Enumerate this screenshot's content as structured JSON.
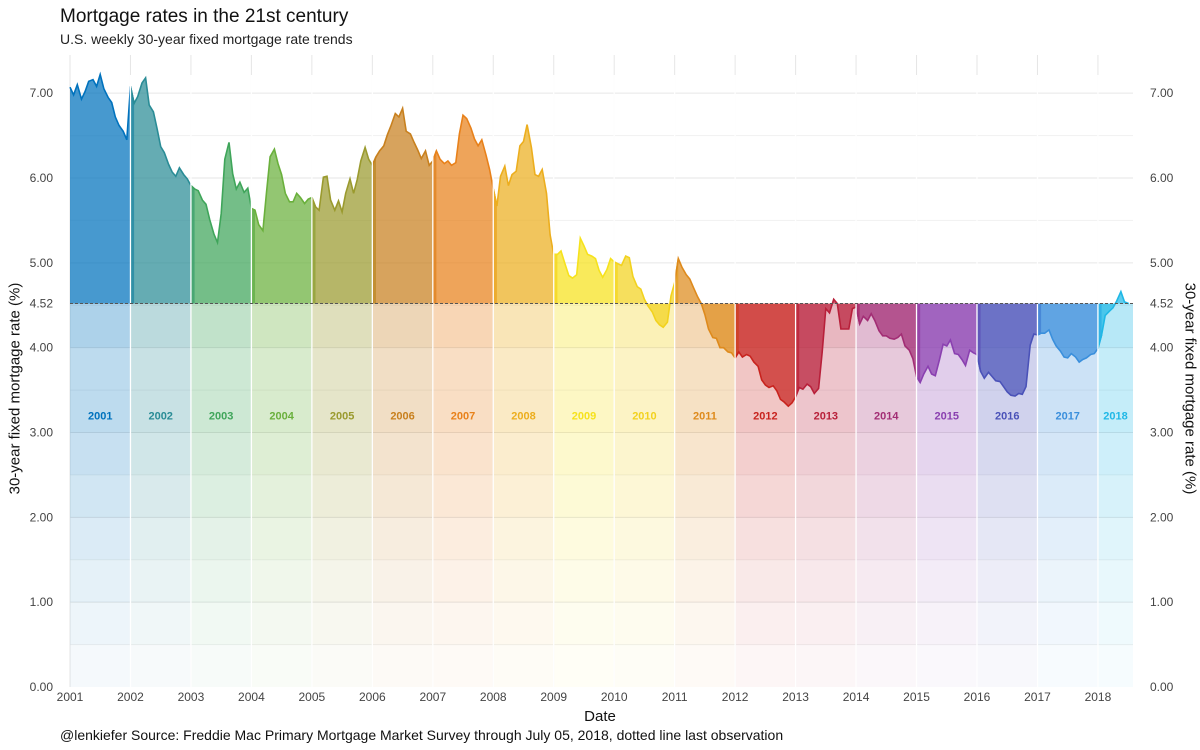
{
  "title": "Mortgage rates in the 21st century",
  "subtitle": "U.S. weekly 30-year fixed mortgage rate trends",
  "caption": "@lenkiefer Source: Freddie Mac Primary Mortgage Market Survey through July 05, 2018, dotted line last observation",
  "chart_data": {
    "type": "area",
    "xlabel": "Date",
    "ylabel": "30-year fixed mortgage rate (%)",
    "ylabel_right": "30-year fixed mortgage rate (%)",
    "xlim": [
      2001.0,
      2018.58
    ],
    "ylim": [
      0,
      7.45
    ],
    "yticks": [
      "0.00",
      "1.00",
      "2.00",
      "3.00",
      "4.00",
      "4.52",
      "5.00",
      "6.00",
      "7.00"
    ],
    "xticks": [
      "2001",
      "2002",
      "2003",
      "2004",
      "2005",
      "2006",
      "2007",
      "2008",
      "2009",
      "2010",
      "2011",
      "2012",
      "2013",
      "2014",
      "2015",
      "2016",
      "2017",
      "2018"
    ],
    "last_observation": 4.52,
    "grid": true,
    "year_label_y": 3.2,
    "years": [
      {
        "label": "2001",
        "color": "#0072bd"
      },
      {
        "label": "2002",
        "color": "#2a8c96"
      },
      {
        "label": "2003",
        "color": "#3fa55a"
      },
      {
        "label": "2004",
        "color": "#6ab03c"
      },
      {
        "label": "2005",
        "color": "#9a9a2e"
      },
      {
        "label": "2006",
        "color": "#c8801e"
      },
      {
        "label": "2007",
        "color": "#e8811a"
      },
      {
        "label": "2008",
        "color": "#ecae1e"
      },
      {
        "label": "2009",
        "color": "#f6e21c"
      },
      {
        "label": "2010",
        "color": "#f2d21e"
      },
      {
        "label": "2011",
        "color": "#de8a1c"
      },
      {
        "label": "2012",
        "color": "#c8231e"
      },
      {
        "label": "2013",
        "color": "#b8203a"
      },
      {
        "label": "2014",
        "color": "#a22d74"
      },
      {
        "label": "2015",
        "color": "#8a40b0"
      },
      {
        "label": "2016",
        "color": "#4a52b8"
      },
      {
        "label": "2017",
        "color": "#3a8fdc"
      },
      {
        "label": "2018",
        "color": "#20b8e6"
      }
    ],
    "x": [
      2001.0,
      2001.06,
      2001.12,
      2001.19,
      2001.25,
      2001.31,
      2001.38,
      2001.44,
      2001.5,
      2001.56,
      2001.63,
      2001.69,
      2001.75,
      2001.81,
      2001.88,
      2001.94,
      2002.0,
      2002.06,
      2002.12,
      2002.19,
      2002.25,
      2002.31,
      2002.38,
      2002.44,
      2002.5,
      2002.56,
      2002.63,
      2002.69,
      2002.75,
      2002.81,
      2002.88,
      2002.94,
      2003.0,
      2003.06,
      2003.12,
      2003.19,
      2003.25,
      2003.31,
      2003.38,
      2003.44,
      2003.5,
      2003.56,
      2003.63,
      2003.69,
      2003.75,
      2003.81,
      2003.88,
      2003.94,
      2004.0,
      2004.06,
      2004.12,
      2004.19,
      2004.25,
      2004.31,
      2004.38,
      2004.44,
      2004.5,
      2004.56,
      2004.63,
      2004.69,
      2004.75,
      2004.81,
      2004.88,
      2004.94,
      2005.0,
      2005.06,
      2005.12,
      2005.19,
      2005.25,
      2005.31,
      2005.38,
      2005.44,
      2005.5,
      2005.56,
      2005.63,
      2005.69,
      2005.75,
      2005.81,
      2005.88,
      2005.94,
      2006.0,
      2006.06,
      2006.12,
      2006.19,
      2006.25,
      2006.31,
      2006.38,
      2006.44,
      2006.5,
      2006.56,
      2006.63,
      2006.69,
      2006.75,
      2006.81,
      2006.88,
      2006.94,
      2007.0,
      2007.06,
      2007.12,
      2007.19,
      2007.25,
      2007.31,
      2007.38,
      2007.44,
      2007.5,
      2007.56,
      2007.63,
      2007.69,
      2007.75,
      2007.81,
      2007.88,
      2007.94,
      2008.0,
      2008.06,
      2008.12,
      2008.19,
      2008.25,
      2008.31,
      2008.38,
      2008.44,
      2008.5,
      2008.56,
      2008.63,
      2008.69,
      2008.75,
      2008.81,
      2008.88,
      2008.94,
      2009.0,
      2009.06,
      2009.12,
      2009.19,
      2009.25,
      2009.31,
      2009.38,
      2009.44,
      2009.5,
      2009.56,
      2009.63,
      2009.69,
      2009.75,
      2009.81,
      2009.88,
      2009.94,
      2010.0,
      2010.06,
      2010.12,
      2010.19,
      2010.25,
      2010.31,
      2010.38,
      2010.44,
      2010.5,
      2010.56,
      2010.63,
      2010.69,
      2010.75,
      2010.81,
      2010.88,
      2010.94,
      2011.0,
      2011.06,
      2011.12,
      2011.19,
      2011.25,
      2011.31,
      2011.38,
      2011.44,
      2011.5,
      2011.56,
      2011.63,
      2011.69,
      2011.75,
      2011.81,
      2011.88,
      2011.94,
      2012.0,
      2012.06,
      2012.12,
      2012.19,
      2012.25,
      2012.31,
      2012.38,
      2012.44,
      2012.5,
      2012.56,
      2012.63,
      2012.69,
      2012.75,
      2012.81,
      2012.88,
      2012.94,
      2013.0,
      2013.06,
      2013.12,
      2013.19,
      2013.25,
      2013.31,
      2013.38,
      2013.44,
      2013.5,
      2013.56,
      2013.63,
      2013.69,
      2013.75,
      2013.81,
      2013.88,
      2013.94,
      2014.0,
      2014.06,
      2014.12,
      2014.19,
      2014.25,
      2014.31,
      2014.38,
      2014.44,
      2014.5,
      2014.56,
      2014.63,
      2014.69,
      2014.75,
      2014.81,
      2014.88,
      2014.94,
      2015.0,
      2015.06,
      2015.12,
      2015.19,
      2015.25,
      2015.31,
      2015.38,
      2015.44,
      2015.5,
      2015.56,
      2015.63,
      2015.69,
      2015.75,
      2015.81,
      2015.88,
      2015.94,
      2016.0,
      2016.06,
      2016.12,
      2016.19,
      2016.25,
      2016.31,
      2016.38,
      2016.44,
      2016.5,
      2016.56,
      2016.63,
      2016.69,
      2016.75,
      2016.81,
      2016.88,
      2016.94,
      2017.0,
      2017.06,
      2017.12,
      2017.19,
      2017.25,
      2017.31,
      2017.38,
      2017.44,
      2017.5,
      2017.56,
      2017.63,
      2017.69,
      2017.75,
      2017.81,
      2017.88,
      2017.94,
      2018.0,
      2018.06,
      2018.12,
      2018.19,
      2018.25,
      2018.31,
      2018.38,
      2018.44,
      2018.51
    ],
    "y": [
      7.07,
      6.98,
      7.1,
      6.93,
      7.02,
      7.14,
      7.16,
      7.08,
      7.22,
      7.05,
      6.95,
      6.89,
      6.72,
      6.62,
      6.55,
      6.45,
      7.08,
      6.88,
      6.96,
      7.12,
      7.18,
      6.86,
      6.78,
      6.58,
      6.37,
      6.3,
      6.16,
      6.07,
      6.02,
      6.12,
      6.04,
      5.99,
      5.91,
      5.87,
      5.85,
      5.74,
      5.69,
      5.51,
      5.34,
      5.24,
      5.58,
      6.22,
      6.42,
      6.05,
      5.87,
      5.95,
      5.83,
      5.88,
      5.64,
      5.62,
      5.45,
      5.38,
      5.83,
      6.25,
      6.34,
      6.17,
      6.04,
      5.82,
      5.72,
      5.72,
      5.82,
      5.77,
      5.7,
      5.75,
      5.77,
      5.66,
      5.62,
      6.01,
      6.02,
      5.74,
      5.62,
      5.73,
      5.6,
      5.82,
      5.99,
      5.82,
      5.98,
      6.2,
      6.36,
      6.22,
      6.15,
      6.25,
      6.32,
      6.38,
      6.51,
      6.62,
      6.76,
      6.72,
      6.82,
      6.55,
      6.52,
      6.42,
      6.33,
      6.23,
      6.32,
      6.15,
      6.2,
      6.32,
      6.22,
      6.17,
      6.2,
      6.15,
      6.18,
      6.52,
      6.74,
      6.7,
      6.59,
      6.46,
      6.38,
      6.45,
      6.27,
      6.1,
      5.87,
      5.67,
      6.02,
      6.14,
      5.91,
      6.04,
      6.08,
      6.38,
      6.43,
      6.63,
      6.36,
      6.04,
      6.02,
      6.1,
      5.82,
      5.33,
      5.1,
      5.1,
      5.14,
      4.98,
      4.85,
      4.82,
      4.86,
      5.29,
      5.2,
      5.1,
      5.08,
      5.05,
      4.91,
      4.83,
      4.92,
      5.05,
      5.01,
      4.99,
      4.97,
      5.08,
      5.06,
      4.84,
      4.72,
      4.69,
      4.57,
      4.49,
      4.42,
      4.32,
      4.27,
      4.24,
      4.3,
      4.61,
      4.77,
      5.05,
      4.95,
      4.86,
      4.81,
      4.71,
      4.6,
      4.52,
      4.39,
      4.22,
      4.12,
      4.11,
      4.0,
      4.0,
      3.95,
      3.94,
      3.88,
      3.95,
      3.89,
      3.92,
      3.9,
      3.83,
      3.78,
      3.62,
      3.56,
      3.53,
      3.55,
      3.49,
      3.39,
      3.36,
      3.31,
      3.35,
      3.42,
      3.53,
      3.51,
      3.57,
      3.54,
      3.46,
      3.52,
      3.95,
      4.46,
      4.41,
      4.57,
      4.52,
      4.22,
      4.22,
      4.22,
      4.46,
      4.48,
      4.28,
      4.37,
      4.32,
      4.4,
      4.32,
      4.2,
      4.14,
      4.14,
      4.11,
      4.1,
      4.12,
      4.16,
      4.02,
      3.97,
      3.87,
      3.66,
      3.59,
      3.69,
      3.78,
      3.69,
      3.67,
      3.86,
      4.04,
      4.02,
      4.09,
      3.93,
      3.92,
      3.86,
      3.79,
      3.97,
      3.94,
      3.92,
      3.72,
      3.64,
      3.71,
      3.66,
      3.61,
      3.6,
      3.54,
      3.48,
      3.44,
      3.43,
      3.46,
      3.45,
      3.54,
      4.03,
      4.16,
      4.15,
      4.17,
      4.17,
      4.21,
      4.1,
      4.02,
      3.96,
      3.89,
      3.88,
      3.93,
      3.89,
      3.83,
      3.86,
      3.88,
      3.92,
      3.93,
      3.99,
      4.15,
      4.38,
      4.43,
      4.47,
      4.55,
      4.66,
      4.54,
      4.52
    ]
  }
}
